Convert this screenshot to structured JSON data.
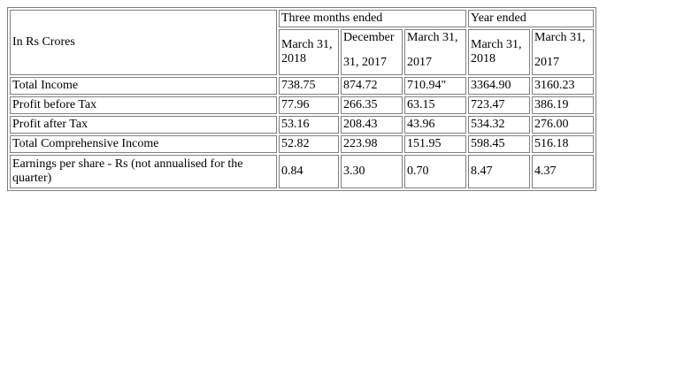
{
  "table": {
    "header": {
      "corner_label": "In Rs Crores",
      "group_three_months": "Three months ended",
      "group_year": "Year ended",
      "columns": [
        {
          "line1": "March 31,",
          "line2": "2018"
        },
        {
          "line1": "December",
          "line2": "31, 2017"
        },
        {
          "line1": "March 31,",
          "line2": "2017"
        },
        {
          "line1": "March 31,",
          "line2": "2018"
        },
        {
          "line1": "March 31,",
          "line2": "2017"
        }
      ]
    },
    "rows": [
      {
        "label": "Total Income",
        "values": [
          "738.75",
          "874.72",
          "710.94\"",
          "3364.90",
          "3160.23"
        ]
      },
      {
        "label": "Profit before Tax",
        "values": [
          "77.96",
          "266.35",
          "63.15",
          "723.47",
          "386.19"
        ]
      },
      {
        "label": "Profit after Tax",
        "values": [
          "53.16",
          "208.43",
          "43.96",
          "534.32",
          "276.00"
        ]
      },
      {
        "label": "Total Comprehensive Income",
        "values": [
          "52.82",
          "223.98",
          "151.95",
          "598.45",
          "516.18"
        ]
      },
      {
        "label": "Earnings per share - Rs (not annualised for the quarter)",
        "values": [
          "0.84",
          "3.30",
          "0.70",
          "8.47",
          "4.37"
        ]
      }
    ]
  }
}
